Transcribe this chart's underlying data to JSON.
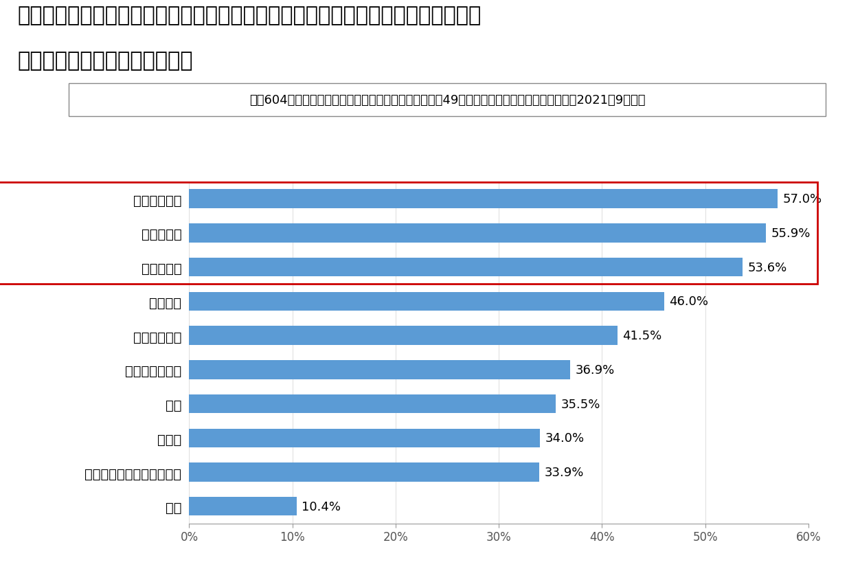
{
  "title_line1": "図表４）＜働く主婦＞ウィズコロナの社会において、興味関心があることをすべて",
  "title_line2": "お選びください。（複数回答）",
  "note": "Ｎ＝604名、当社に登録する女性（働く主婦、平均年齢49歳）　ソフトブレーン・フィールド2021年9月調査",
  "categories": [
    "人との関わり",
    "医療・介護",
    "雇用・就労",
    "景気悪化",
    "外食サービス",
    "家族との関わり",
    "教育",
    "観光業",
    "音楽や演劇などのエンタメ",
    "保育"
  ],
  "values": [
    57.0,
    55.9,
    53.6,
    46.0,
    41.5,
    36.9,
    35.5,
    34.0,
    33.9,
    10.4
  ],
  "bar_color": "#5B9BD5",
  "highlight_indices": [
    0,
    1,
    2
  ],
  "highlight_box_color": "#CC0000",
  "background_color": "#FFFFFF",
  "xlim": [
    0,
    60
  ],
  "xticks": [
    0,
    10,
    20,
    30,
    40,
    50,
    60
  ],
  "xtick_labels": [
    "0%",
    "10%",
    "20%",
    "30%",
    "40%",
    "50%",
    "60%"
  ],
  "title_fontsize": 22,
  "note_fontsize": 13,
  "label_fontsize": 14,
  "value_fontsize": 13,
  "tick_fontsize": 12
}
